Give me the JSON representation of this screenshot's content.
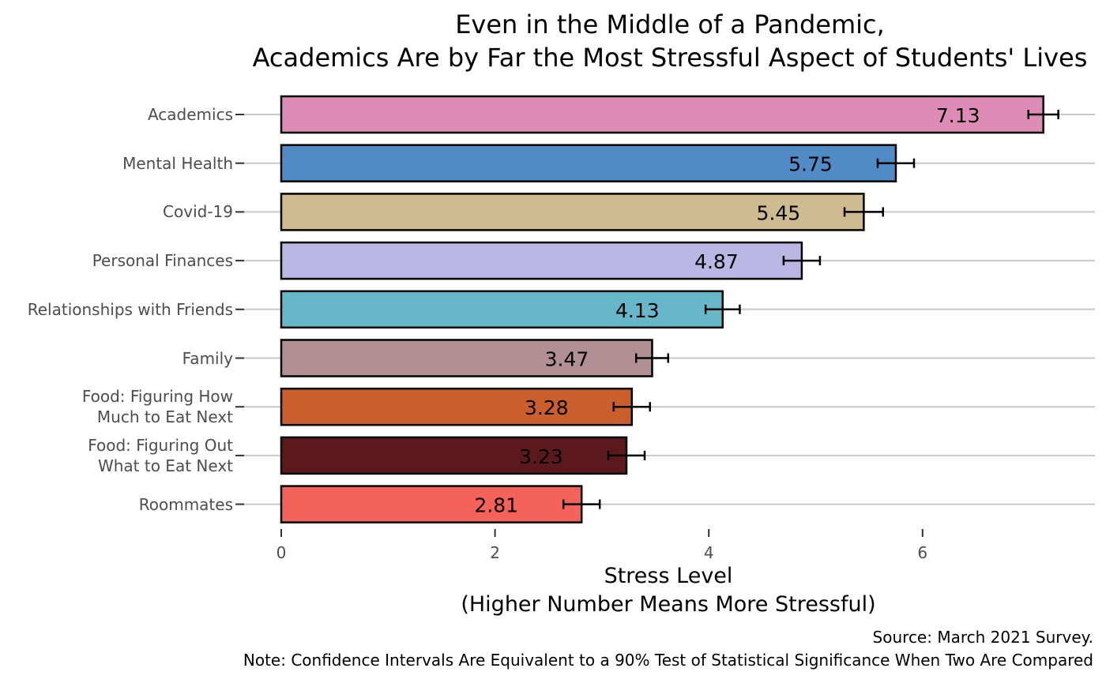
{
  "chart_data": {
    "type": "bar",
    "orientation": "horizontal",
    "title_lines": [
      "Even in the Middle of a Pandemic,",
      "Academics Are by Far the Most Stressful Aspect of Students' Lives"
    ],
    "xlabel_lines": [
      "Stress Level",
      "(Higher Number Means More Stressful)"
    ],
    "ylabel": "",
    "caption_lines": [
      "Source: March 2021 Survey.",
      "Note: Confidence Intervals Are Equivalent to a 90% Test of Statistical Significance When Two Are Compared"
    ],
    "xlim": [
      0,
      7.4
    ],
    "xticks": [
      0,
      2,
      4,
      6
    ],
    "grid": "horizontal lines at each category",
    "legend": "none",
    "bars": [
      {
        "category": [
          "Academics"
        ],
        "value": 7.13,
        "label": "7.13",
        "ci": [
          6.99,
          7.27
        ],
        "color": "#DE8BB6"
      },
      {
        "category": [
          "Mental Health"
        ],
        "value": 5.75,
        "label": "5.75",
        "ci": [
          5.58,
          5.92
        ],
        "color": "#508BC6"
      },
      {
        "category": [
          "Covid-19"
        ],
        "value": 5.45,
        "label": "5.45",
        "ci": [
          5.27,
          5.63
        ],
        "color": "#CEBC90"
      },
      {
        "category": [
          "Personal Finances"
        ],
        "value": 4.87,
        "label": "4.87",
        "ci": [
          4.7,
          5.04
        ],
        "color": "#BBB7E5"
      },
      {
        "category": [
          "Relationships with Friends"
        ],
        "value": 4.13,
        "label": "4.13",
        "ci": [
          3.97,
          4.29
        ],
        "color": "#66B8C9"
      },
      {
        "category": [
          "Family"
        ],
        "value": 3.47,
        "label": "3.47",
        "ci": [
          3.32,
          3.62
        ],
        "color": "#B08F95"
      },
      {
        "category": [
          "Food: Figuring How",
          "Much to Eat Next"
        ],
        "value": 3.28,
        "label": "3.28",
        "ci": [
          3.11,
          3.45
        ],
        "color": "#CA5F2C"
      },
      {
        "category": [
          "Food: Figuring Out",
          "What to Eat Next"
        ],
        "value": 3.23,
        "label": "3.23",
        "ci": [
          3.06,
          3.4
        ],
        "color": "#5B191B"
      },
      {
        "category": [
          "Roommates"
        ],
        "value": 2.81,
        "label": "2.81",
        "ci": [
          2.64,
          2.98
        ],
        "color": "#F5625A"
      }
    ]
  }
}
